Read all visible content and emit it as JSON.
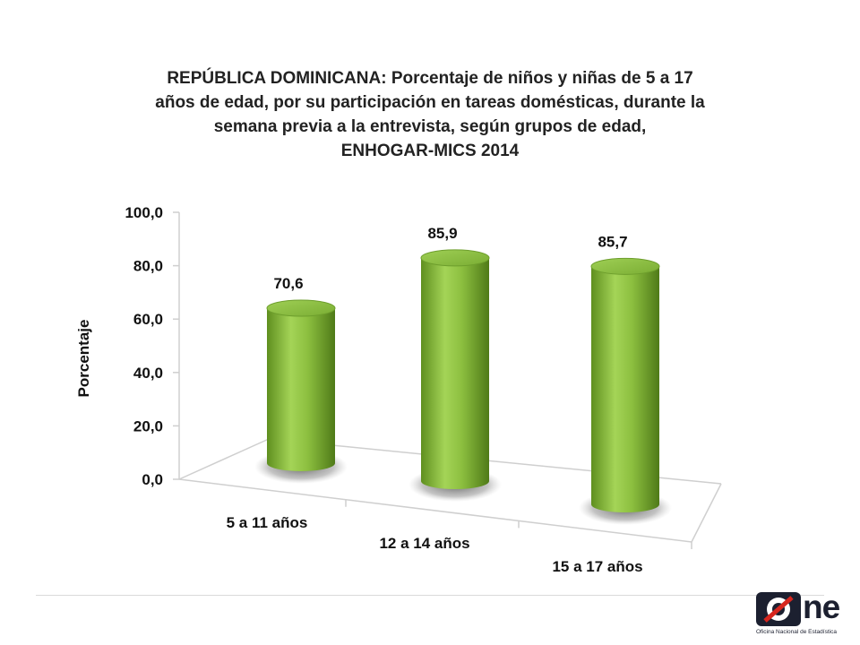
{
  "chart_data": {
    "type": "bar",
    "title_lines": [
      "REPÚBLICA DOMINICANA: Porcentaje de niños y niñas de 5 a 17",
      "años de edad, por su participación en tareas domésticas, durante la",
      "semana previa a la entrevista, según grupos de edad,",
      "ENHOGAR-MICS 2014"
    ],
    "ylabel": "Porcentaje",
    "xlabel": "",
    "categories": [
      "5 a 11 años",
      "12 a 14 años",
      "15 a 17 años"
    ],
    "values": [
      70.6,
      85.9,
      85.7
    ],
    "data_labels": [
      "70,6",
      "85,9",
      "85,7"
    ],
    "yticks": [
      "0,0",
      "20,0",
      "40,0",
      "60,0",
      "80,0",
      "100,0"
    ],
    "ylim": [
      0,
      100
    ],
    "grid": false,
    "legend": "none",
    "bar_color": "#8cbf3f"
  },
  "logo": {
    "wordmark": "One",
    "subtitle": "Oficina Nacional de Estadística"
  }
}
